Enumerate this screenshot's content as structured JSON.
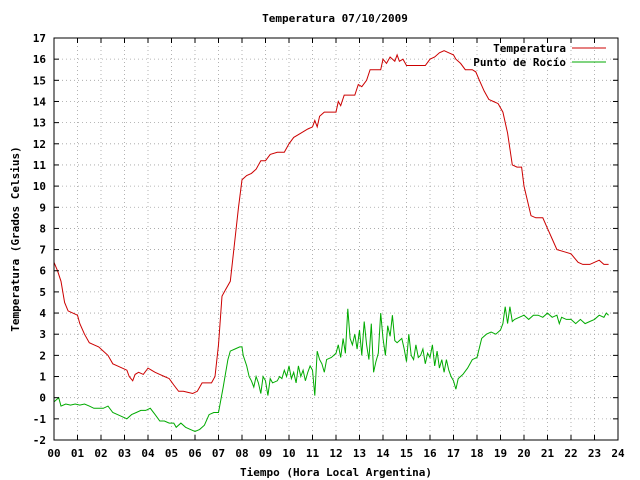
{
  "chart_data": {
    "type": "line",
    "title": "Temperatura 07/10/2009",
    "xlabel": "Tiempo (Hora Local Argentina)",
    "ylabel": "Temperatura (Grados Celsius)",
    "xlim": [
      0,
      24
    ],
    "ylim": [
      -2,
      17
    ],
    "grid": true,
    "legend_position": "top-right",
    "x_tick_labels": [
      "00",
      "01",
      "02",
      "03",
      "04",
      "05",
      "06",
      "07",
      "08",
      "09",
      "10",
      "11",
      "12",
      "13",
      "14",
      "15",
      "16",
      "17",
      "18",
      "19",
      "20",
      "21",
      "22",
      "23",
      "24"
    ],
    "y_tick_labels": [
      "-2",
      "-1",
      "0",
      "1",
      "2",
      "3",
      "4",
      "5",
      "6",
      "7",
      "8",
      "9",
      "10",
      "11",
      "12",
      "13",
      "14",
      "15",
      "16",
      "17"
    ],
    "series": [
      {
        "name": "Temperatura",
        "color": "#cc0000",
        "points": [
          [
            0.0,
            6.4
          ],
          [
            0.15,
            6.0
          ],
          [
            0.3,
            5.5
          ],
          [
            0.45,
            4.5
          ],
          [
            0.6,
            4.1
          ],
          [
            0.8,
            4.0
          ],
          [
            1.0,
            3.9
          ],
          [
            1.1,
            3.5
          ],
          [
            1.3,
            3.0
          ],
          [
            1.5,
            2.6
          ],
          [
            1.7,
            2.5
          ],
          [
            1.9,
            2.4
          ],
          [
            2.1,
            2.2
          ],
          [
            2.3,
            2.0
          ],
          [
            2.5,
            1.6
          ],
          [
            2.7,
            1.5
          ],
          [
            2.9,
            1.4
          ],
          [
            3.1,
            1.3
          ],
          [
            3.2,
            1.0
          ],
          [
            3.35,
            0.8
          ],
          [
            3.45,
            1.1
          ],
          [
            3.6,
            1.2
          ],
          [
            3.8,
            1.1
          ],
          [
            4.0,
            1.4
          ],
          [
            4.15,
            1.3
          ],
          [
            4.3,
            1.2
          ],
          [
            4.5,
            1.1
          ],
          [
            4.7,
            1.0
          ],
          [
            4.9,
            0.9
          ],
          [
            5.1,
            0.6
          ],
          [
            5.3,
            0.3
          ],
          [
            5.5,
            0.3
          ],
          [
            5.7,
            0.25
          ],
          [
            5.9,
            0.2
          ],
          [
            6.1,
            0.3
          ],
          [
            6.3,
            0.7
          ],
          [
            6.5,
            0.7
          ],
          [
            6.7,
            0.7
          ],
          [
            6.85,
            1.0
          ],
          [
            7.0,
            2.5
          ],
          [
            7.15,
            4.8
          ],
          [
            7.3,
            5.1
          ],
          [
            7.5,
            5.5
          ],
          [
            7.7,
            7.5
          ],
          [
            7.85,
            9.0
          ],
          [
            8.0,
            10.3
          ],
          [
            8.2,
            10.5
          ],
          [
            8.4,
            10.6
          ],
          [
            8.6,
            10.8
          ],
          [
            8.8,
            11.2
          ],
          [
            9.0,
            11.2
          ],
          [
            9.2,
            11.5
          ],
          [
            9.5,
            11.6
          ],
          [
            9.8,
            11.6
          ],
          [
            10.0,
            12.0
          ],
          [
            10.2,
            12.3
          ],
          [
            10.5,
            12.5
          ],
          [
            10.8,
            12.7
          ],
          [
            11.0,
            12.8
          ],
          [
            11.1,
            13.1
          ],
          [
            11.2,
            12.8
          ],
          [
            11.3,
            13.3
          ],
          [
            11.5,
            13.5
          ],
          [
            11.8,
            13.5
          ],
          [
            12.0,
            13.5
          ],
          [
            12.1,
            14.0
          ],
          [
            12.2,
            13.8
          ],
          [
            12.35,
            14.3
          ],
          [
            12.6,
            14.3
          ],
          [
            12.8,
            14.3
          ],
          [
            12.95,
            14.8
          ],
          [
            13.1,
            14.7
          ],
          [
            13.3,
            15.0
          ],
          [
            13.45,
            15.5
          ],
          [
            13.7,
            15.5
          ],
          [
            13.9,
            15.5
          ],
          [
            14.0,
            16.0
          ],
          [
            14.15,
            15.8
          ],
          [
            14.3,
            16.1
          ],
          [
            14.5,
            15.9
          ],
          [
            14.6,
            16.2
          ],
          [
            14.7,
            15.9
          ],
          [
            14.85,
            16.0
          ],
          [
            15.0,
            15.7
          ],
          [
            15.2,
            15.7
          ],
          [
            15.5,
            15.7
          ],
          [
            15.8,
            15.7
          ],
          [
            16.0,
            16.0
          ],
          [
            16.2,
            16.1
          ],
          [
            16.4,
            16.3
          ],
          [
            16.6,
            16.4
          ],
          [
            16.8,
            16.3
          ],
          [
            17.0,
            16.2
          ],
          [
            17.1,
            16.0
          ],
          [
            17.3,
            15.8
          ],
          [
            17.5,
            15.5
          ],
          [
            17.8,
            15.5
          ],
          [
            17.95,
            15.4
          ],
          [
            18.1,
            15.0
          ],
          [
            18.3,
            14.5
          ],
          [
            18.5,
            14.1
          ],
          [
            18.7,
            14.0
          ],
          [
            18.9,
            13.9
          ],
          [
            19.1,
            13.5
          ],
          [
            19.3,
            12.5
          ],
          [
            19.5,
            11.0
          ],
          [
            19.7,
            10.9
          ],
          [
            19.9,
            10.9
          ],
          [
            20.0,
            10.0
          ],
          [
            20.3,
            8.6
          ],
          [
            20.5,
            8.5
          ],
          [
            20.8,
            8.5
          ],
          [
            21.0,
            8.0
          ],
          [
            21.2,
            7.5
          ],
          [
            21.4,
            7.0
          ],
          [
            21.7,
            6.9
          ],
          [
            22.0,
            6.8
          ],
          [
            22.3,
            6.4
          ],
          [
            22.5,
            6.3
          ],
          [
            22.8,
            6.3
          ],
          [
            23.0,
            6.4
          ],
          [
            23.2,
            6.5
          ],
          [
            23.4,
            6.3
          ],
          [
            23.6,
            6.3
          ]
        ]
      },
      {
        "name": "Punto de Rocío",
        "color": "#00aa00",
        "points": [
          [
            0.0,
            -0.2
          ],
          [
            0.1,
            -0.1
          ],
          [
            0.2,
            0.0
          ],
          [
            0.3,
            -0.4
          ],
          [
            0.5,
            -0.3
          ],
          [
            0.7,
            -0.35
          ],
          [
            0.9,
            -0.3
          ],
          [
            1.1,
            -0.35
          ],
          [
            1.3,
            -0.3
          ],
          [
            1.5,
            -0.4
          ],
          [
            1.7,
            -0.5
          ],
          [
            1.9,
            -0.5
          ],
          [
            2.1,
            -0.5
          ],
          [
            2.3,
            -0.4
          ],
          [
            2.5,
            -0.7
          ],
          [
            2.7,
            -0.8
          ],
          [
            2.9,
            -0.9
          ],
          [
            3.1,
            -1.0
          ],
          [
            3.3,
            -0.8
          ],
          [
            3.5,
            -0.7
          ],
          [
            3.7,
            -0.6
          ],
          [
            3.9,
            -0.6
          ],
          [
            4.1,
            -0.5
          ],
          [
            4.3,
            -0.8
          ],
          [
            4.5,
            -1.1
          ],
          [
            4.7,
            -1.1
          ],
          [
            4.9,
            -1.2
          ],
          [
            5.1,
            -1.2
          ],
          [
            5.2,
            -1.4
          ],
          [
            5.4,
            -1.2
          ],
          [
            5.6,
            -1.4
          ],
          [
            5.8,
            -1.5
          ],
          [
            6.0,
            -1.6
          ],
          [
            6.2,
            -1.5
          ],
          [
            6.4,
            -1.3
          ],
          [
            6.6,
            -0.8
          ],
          [
            6.8,
            -0.7
          ],
          [
            7.0,
            -0.7
          ],
          [
            7.2,
            0.5
          ],
          [
            7.4,
            1.8
          ],
          [
            7.5,
            2.2
          ],
          [
            7.7,
            2.3
          ],
          [
            7.9,
            2.4
          ],
          [
            8.0,
            2.4
          ],
          [
            8.05,
            2.0
          ],
          [
            8.2,
            1.5
          ],
          [
            8.3,
            1.0
          ],
          [
            8.4,
            0.8
          ],
          [
            8.5,
            0.5
          ],
          [
            8.6,
            1.0
          ],
          [
            8.7,
            0.7
          ],
          [
            8.8,
            0.2
          ],
          [
            8.9,
            1.0
          ],
          [
            9.0,
            0.8
          ],
          [
            9.1,
            0.1
          ],
          [
            9.2,
            0.9
          ],
          [
            9.3,
            0.7
          ],
          [
            9.5,
            0.8
          ],
          [
            9.6,
            1.0
          ],
          [
            9.7,
            0.9
          ],
          [
            9.8,
            1.3
          ],
          [
            9.9,
            1.0
          ],
          [
            10.0,
            1.5
          ],
          [
            10.1,
            0.9
          ],
          [
            10.2,
            1.2
          ],
          [
            10.3,
            0.7
          ],
          [
            10.4,
            1.5
          ],
          [
            10.5,
            1.0
          ],
          [
            10.6,
            1.3
          ],
          [
            10.7,
            0.8
          ],
          [
            10.8,
            1.2
          ],
          [
            10.9,
            1.5
          ],
          [
            11.0,
            1.3
          ],
          [
            11.1,
            0.1
          ],
          [
            11.2,
            2.2
          ],
          [
            11.3,
            1.8
          ],
          [
            11.4,
            1.6
          ],
          [
            11.5,
            1.2
          ],
          [
            11.6,
            1.8
          ],
          [
            11.8,
            1.9
          ],
          [
            11.9,
            2.0
          ],
          [
            12.0,
            2.1
          ],
          [
            12.1,
            2.5
          ],
          [
            12.2,
            1.9
          ],
          [
            12.3,
            2.8
          ],
          [
            12.4,
            2.1
          ],
          [
            12.5,
            4.2
          ],
          [
            12.6,
            2.8
          ],
          [
            12.7,
            2.5
          ],
          [
            12.8,
            3.0
          ],
          [
            12.9,
            2.3
          ],
          [
            13.0,
            3.2
          ],
          [
            13.1,
            2.0
          ],
          [
            13.2,
            3.6
          ],
          [
            13.3,
            2.5
          ],
          [
            13.4,
            1.8
          ],
          [
            13.5,
            3.5
          ],
          [
            13.6,
            1.2
          ],
          [
            13.7,
            1.7
          ],
          [
            13.8,
            2.1
          ],
          [
            13.9,
            4.0
          ],
          [
            14.0,
            2.8
          ],
          [
            14.1,
            2.0
          ],
          [
            14.2,
            3.4
          ],
          [
            14.3,
            2.9
          ],
          [
            14.4,
            3.9
          ],
          [
            14.5,
            2.7
          ],
          [
            14.6,
            2.6
          ],
          [
            14.7,
            2.7
          ],
          [
            14.8,
            2.8
          ],
          [
            14.9,
            2.3
          ],
          [
            15.0,
            1.7
          ],
          [
            15.1,
            3.0
          ],
          [
            15.2,
            2.0
          ],
          [
            15.3,
            1.8
          ],
          [
            15.4,
            2.5
          ],
          [
            15.5,
            1.9
          ],
          [
            15.6,
            2.0
          ],
          [
            15.7,
            2.3
          ],
          [
            15.8,
            1.6
          ],
          [
            15.9,
            2.1
          ],
          [
            16.0,
            1.9
          ],
          [
            16.1,
            2.5
          ],
          [
            16.2,
            1.5
          ],
          [
            16.3,
            2.2
          ],
          [
            16.4,
            1.4
          ],
          [
            16.5,
            1.8
          ],
          [
            16.6,
            1.2
          ],
          [
            16.7,
            1.8
          ],
          [
            16.8,
            1.3
          ],
          [
            16.9,
            1.0
          ],
          [
            17.0,
            0.8
          ],
          [
            17.1,
            0.4
          ],
          [
            17.2,
            0.9
          ],
          [
            17.4,
            1.1
          ],
          [
            17.6,
            1.4
          ],
          [
            17.8,
            1.8
          ],
          [
            18.0,
            1.9
          ],
          [
            18.2,
            2.8
          ],
          [
            18.4,
            3.0
          ],
          [
            18.6,
            3.1
          ],
          [
            18.8,
            3.0
          ],
          [
            19.0,
            3.2
          ],
          [
            19.1,
            3.5
          ],
          [
            19.2,
            4.3
          ],
          [
            19.3,
            3.5
          ],
          [
            19.4,
            4.3
          ],
          [
            19.5,
            3.6
          ],
          [
            19.6,
            3.7
          ],
          [
            19.8,
            3.8
          ],
          [
            20.0,
            3.9
          ],
          [
            20.2,
            3.7
          ],
          [
            20.4,
            3.9
          ],
          [
            20.6,
            3.9
          ],
          [
            20.8,
            3.8
          ],
          [
            21.0,
            4.0
          ],
          [
            21.2,
            3.8
          ],
          [
            21.4,
            3.9
          ],
          [
            21.5,
            3.5
          ],
          [
            21.6,
            3.8
          ],
          [
            21.8,
            3.7
          ],
          [
            22.0,
            3.7
          ],
          [
            22.2,
            3.5
          ],
          [
            22.4,
            3.7
          ],
          [
            22.6,
            3.5
          ],
          [
            22.8,
            3.6
          ],
          [
            23.0,
            3.7
          ],
          [
            23.2,
            3.9
          ],
          [
            23.4,
            3.8
          ],
          [
            23.5,
            4.0
          ],
          [
            23.6,
            3.9
          ]
        ]
      }
    ]
  }
}
